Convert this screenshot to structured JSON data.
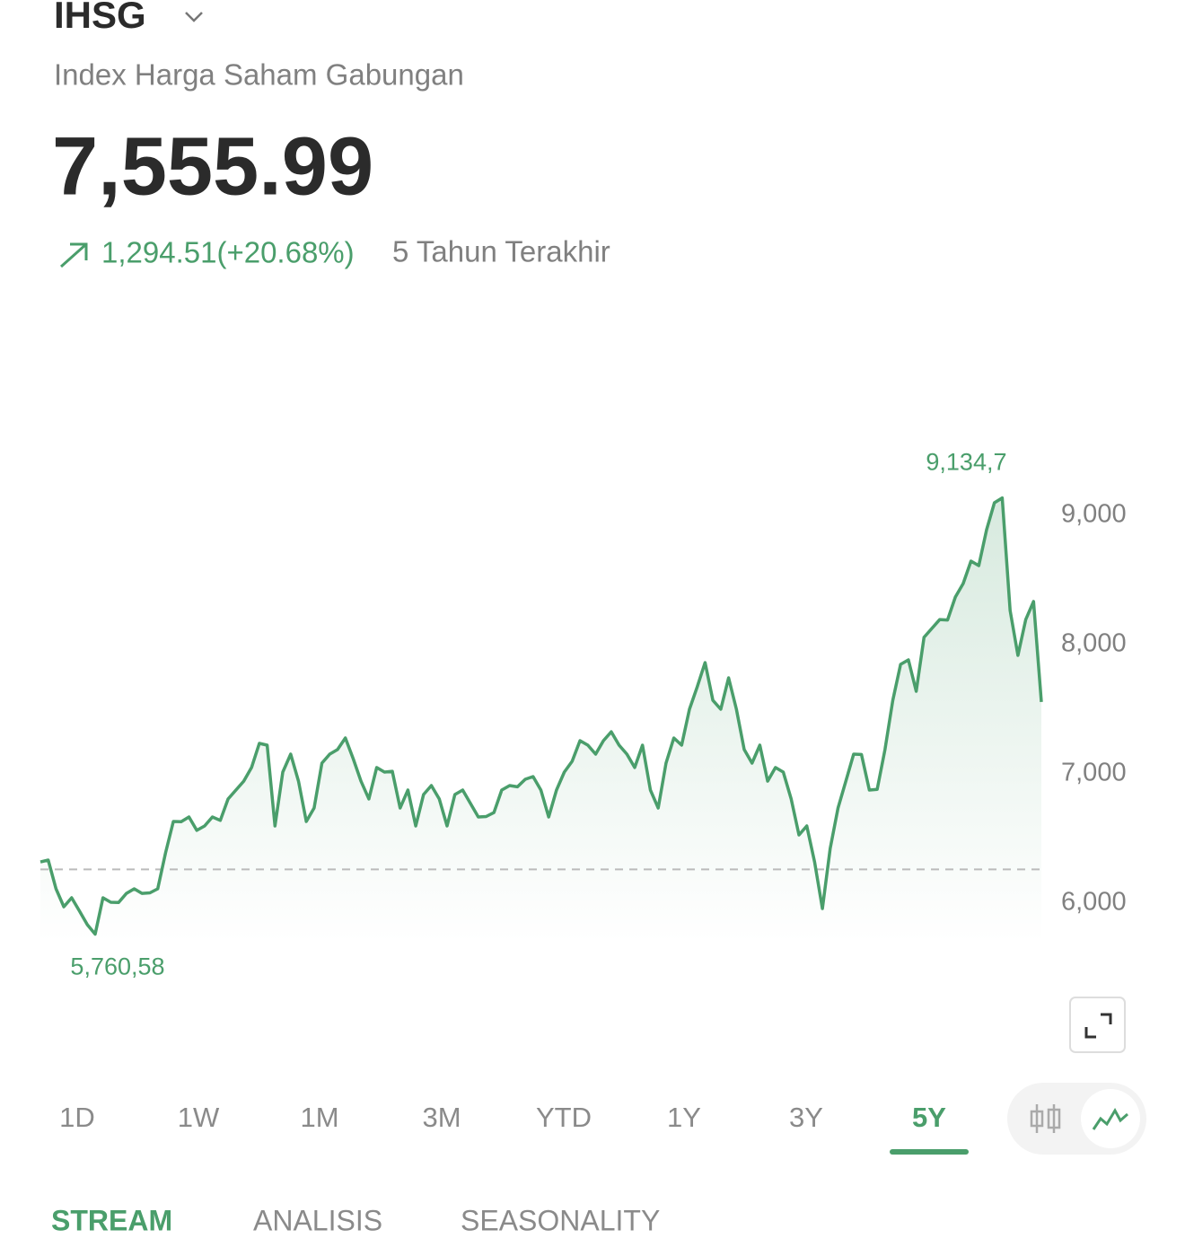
{
  "header": {
    "title": "IHSG",
    "subtitle": "Index Harga Saham Gabungan",
    "price": "7,555.99",
    "change": "1,294.51(+20.68%)",
    "period": "5 Tahun Terakhir"
  },
  "chart_data": {
    "type": "line",
    "color": "#4a9e6b",
    "grid": false,
    "values": [
      6319,
      6333,
      6111,
      5972,
      6042,
      5938,
      5833,
      5760.58,
      6042,
      6007,
      6005,
      6076,
      6111,
      6076,
      6080,
      6111,
      6389,
      6632,
      6630,
      6667,
      6563,
      6597,
      6667,
      6640,
      6806,
      6875,
      6944,
      7049,
      7236,
      7222,
      6597,
      7014,
      7153,
      6944,
      6632,
      6736,
      7083,
      7153,
      7188,
      7278,
      7118,
      6944,
      6806,
      7049,
      7014,
      7020,
      6736,
      6875,
      6597,
      6840,
      6910,
      6806,
      6597,
      6840,
      6875,
      6771,
      6667,
      6670,
      6701,
      6875,
      6910,
      6900,
      6958,
      6979,
      6875,
      6667,
      6875,
      7014,
      7097,
      7257,
      7222,
      7153,
      7257,
      7326,
      7222,
      7153,
      7049,
      7222,
      6875,
      6736,
      7083,
      7278,
      7222,
      7500,
      7674,
      7861,
      7569,
      7500,
      7743,
      7500,
      7188,
      7083,
      7222,
      6944,
      7049,
      7014,
      6806,
      6528,
      6597,
      6319,
      5958,
      6424,
      6736,
      6944,
      7153,
      7150,
      6875,
      6880,
      7188,
      7569,
      7847,
      7882,
      7639,
      8056,
      8125,
      8194,
      8190,
      8368,
      8472,
      8646,
      8611,
      8889,
      9097,
      9134.7,
      8264,
      7917,
      8194,
      8333,
      7555.99
    ],
    "ylim": [
      5700,
      9300
    ],
    "yticks": [
      {
        "value": 6000,
        "label": "6,000"
      },
      {
        "value": 7000,
        "label": "7,000"
      },
      {
        "value": 8000,
        "label": "8,000"
      },
      {
        "value": 9000,
        "label": "9,000"
      }
    ],
    "baseline": 6261.48,
    "annotations": [
      {
        "value": 9134.7,
        "label": "9,134,7"
      },
      {
        "value": 5760.58,
        "label": "5,760,58"
      }
    ]
  },
  "ranges": [
    "1D",
    "1W",
    "1M",
    "3M",
    "YTD",
    "1Y",
    "3Y",
    "5Y"
  ],
  "selected_range_index": 7,
  "tabs": [
    "STREAM",
    "ANALISIS",
    "SEASONALITY"
  ],
  "active_tab_index": 0
}
